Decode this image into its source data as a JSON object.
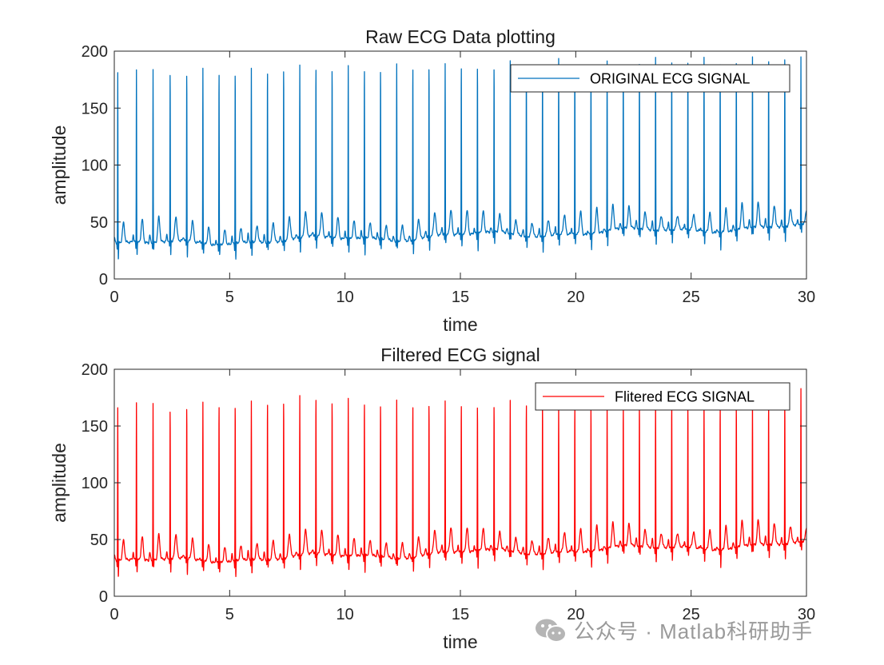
{
  "chart_data": [
    {
      "type": "line",
      "title": "Raw ECG Data plotting",
      "xlabel": "time",
      "ylabel": "amplitude",
      "xlim": [
        0,
        30
      ],
      "ylim": [
        0,
        200
      ],
      "xticks": [
        0,
        5,
        10,
        15,
        20,
        25,
        30
      ],
      "yticks": [
        0,
        50,
        100,
        150,
        200
      ],
      "grid": false,
      "legend": "top-right",
      "series": [
        {
          "name": "ORIGINAL ECG SIGNAL",
          "color": "#0072BD",
          "baseline_start": 30,
          "baseline_end": 46,
          "r_peaks": {
            "t": [
              0.15,
              0.96,
              1.68,
              2.42,
              3.14,
              3.84,
              4.54,
              5.24,
              5.94,
              6.64,
              7.34,
              8.04,
              8.74,
              9.44,
              10.14,
              10.84,
              11.54,
              12.24,
              12.94,
              13.64,
              14.34,
              15.04,
              15.74,
              16.46,
              17.16,
              17.86,
              18.56,
              19.26,
              19.96,
              20.66,
              21.36,
              22.06,
              22.76,
              23.46,
              24.16,
              24.86,
              25.56,
              26.26,
              26.96,
              27.66,
              28.36,
              29.06,
              29.76
            ],
            "amplitude": [
              182,
              184,
              185,
              183,
              184,
              186,
              185,
              184,
              185,
              185,
              187,
              188,
              189,
              188,
              188,
              188,
              187,
              189,
              189,
              189,
              189,
              190,
              190,
              190,
              192,
              192,
              192,
              193,
              193,
              192,
              193,
              193,
              194,
              194,
              194,
              194,
              195,
              195,
              196,
              196,
              196,
              197,
              194
            ]
          }
        }
      ]
    },
    {
      "type": "line",
      "title": "Filtered ECG signal",
      "xlabel": "time",
      "ylabel": "amplitude",
      "xlim": [
        0,
        30
      ],
      "ylim": [
        0,
        200
      ],
      "xticks": [
        0,
        5,
        10,
        15,
        20,
        25,
        30
      ],
      "yticks": [
        0,
        50,
        100,
        150,
        200
      ],
      "grid": false,
      "legend": "top-right",
      "series": [
        {
          "name": "Flitered ECG SIGNAL",
          "color": "#FF0000",
          "baseline_start": 30,
          "baseline_end": 46,
          "r_peaks": {
            "t": [
              0.15,
              0.96,
              1.68,
              2.42,
              3.14,
              3.84,
              4.54,
              5.24,
              5.94,
              6.64,
              7.34,
              8.04,
              8.74,
              9.44,
              10.14,
              10.84,
              11.54,
              12.24,
              12.94,
              13.64,
              14.34,
              15.04,
              15.74,
              16.46,
              17.16,
              17.86,
              18.56,
              19.26,
              19.96,
              20.66,
              21.36,
              22.06,
              22.76,
              23.46,
              24.16,
              24.86,
              25.56,
              26.26,
              26.96,
              27.66,
              28.36,
              29.06,
              29.76
            ],
            "amplitude": [
              167,
              171,
              171,
              166,
              170,
              172,
              172,
              171,
              172,
              173,
              174,
              177,
              178,
              175,
              175,
              174,
              172,
              173,
              171,
              172,
              172,
              172,
              171,
              172,
              173,
              172,
              172,
              171,
              170,
              170,
              171,
              171,
              172,
              172,
              173,
              172,
              173,
              172,
              173,
              173,
              173,
              174,
              182
            ]
          }
        }
      ]
    }
  ],
  "watermark": {
    "text": "公众号 · Matlab科研助手"
  }
}
